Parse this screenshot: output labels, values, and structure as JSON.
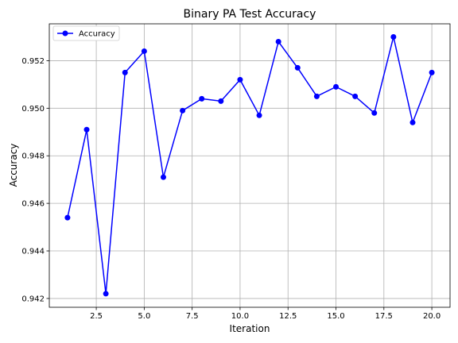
{
  "chart_data": {
    "type": "line",
    "title": "Binary PA Test Accuracy",
    "xlabel": "Iteration",
    "ylabel": "Accuracy",
    "xlim": [
      0.05,
      20.95
    ],
    "ylim": [
      0.94163,
      0.95355
    ],
    "xticks": [
      2.5,
      5.0,
      7.5,
      10.0,
      12.5,
      15.0,
      17.5,
      20.0
    ],
    "xtick_labels": [
      "2.5",
      "5.0",
      "7.5",
      "10.0",
      "12.5",
      "15.0",
      "17.5",
      "20.0"
    ],
    "yticks": [
      0.942,
      0.944,
      0.946,
      0.948,
      0.95,
      0.952
    ],
    "ytick_labels": [
      "0.942",
      "0.944",
      "0.946",
      "0.948",
      "0.950",
      "0.952"
    ],
    "grid": true,
    "legend_position": "top-left",
    "series": [
      {
        "name": "Accuracy",
        "color": "#0000ff",
        "marker": "circle",
        "x": [
          1,
          2,
          3,
          4,
          5,
          6,
          7,
          8,
          9,
          10,
          11,
          12,
          13,
          14,
          15,
          16,
          17,
          18,
          19,
          20
        ],
        "y": [
          0.9454,
          0.9491,
          0.9422,
          0.9515,
          0.9524,
          0.9471,
          0.9499,
          0.9504,
          0.9503,
          0.9512,
          0.9497,
          0.9528,
          0.9517,
          0.9505,
          0.9509,
          0.9505,
          0.9498,
          0.953,
          0.9494,
          0.9515
        ]
      }
    ]
  }
}
